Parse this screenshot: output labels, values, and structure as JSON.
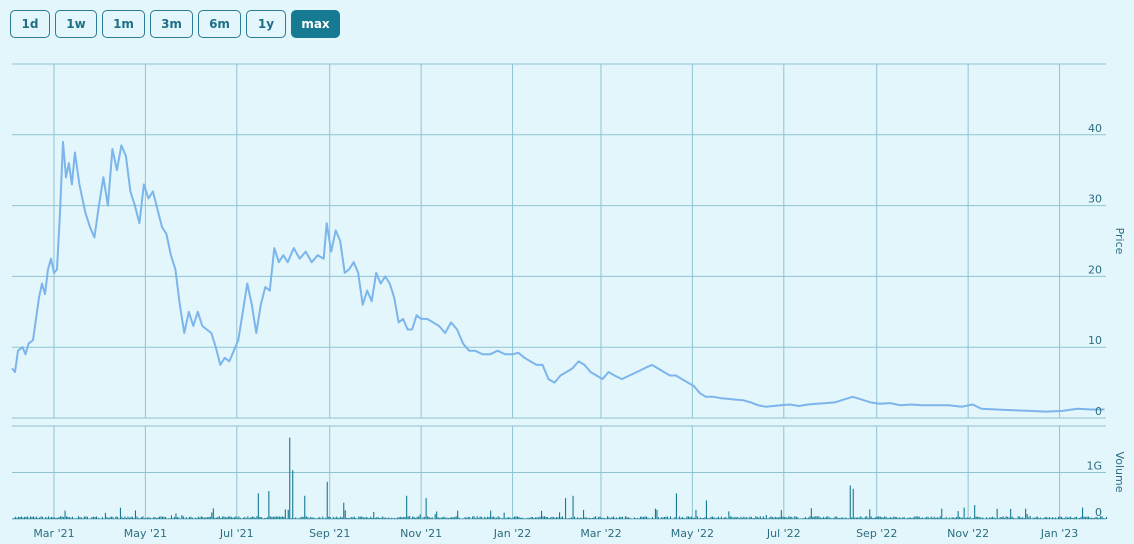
{
  "range_selector": {
    "buttons": [
      {
        "label": "1d",
        "active": false
      },
      {
        "label": "1w",
        "active": false
      },
      {
        "label": "1m",
        "active": false
      },
      {
        "label": "3m",
        "active": false
      },
      {
        "label": "6m",
        "active": false
      },
      {
        "label": "1y",
        "active": false
      },
      {
        "label": "max",
        "active": true
      }
    ]
  },
  "colors": {
    "background": "#e3f6fc",
    "grid": "#8fc3d2",
    "price_line": "#7cb5ec",
    "volume_bar": "#167a92",
    "text": "#2c6e80"
  },
  "chart_data": {
    "type": "line",
    "x_start": "2021-02-01",
    "x_end": "2023-02-01",
    "x_ticks": [
      {
        "label": "Mar '21",
        "date": "2021-03-01"
      },
      {
        "label": "May '21",
        "date": "2021-05-01"
      },
      {
        "label": "Jul '21",
        "date": "2021-07-01"
      },
      {
        "label": "Sep '21",
        "date": "2021-09-01"
      },
      {
        "label": "Nov '21",
        "date": "2021-11-01"
      },
      {
        "label": "Jan '22",
        "date": "2022-01-01"
      },
      {
        "label": "Mar '22",
        "date": "2022-03-01"
      },
      {
        "label": "May '22",
        "date": "2022-05-01"
      },
      {
        "label": "Jul '22",
        "date": "2022-07-01"
      },
      {
        "label": "Sep '22",
        "date": "2022-09-01"
      },
      {
        "label": "Nov '22",
        "date": "2022-11-01"
      },
      {
        "label": "Jan '23",
        "date": "2023-01-01"
      }
    ],
    "grid": true,
    "price": {
      "axis_title": "Price",
      "ylim": [
        0,
        50
      ],
      "y_ticks": [
        0,
        10,
        20,
        30,
        40
      ],
      "tick_labels": [
        "0",
        "10",
        "20",
        "30",
        "40"
      ],
      "points": [
        [
          "2021-02-01",
          7
        ],
        [
          "2021-02-03",
          6.5
        ],
        [
          "2021-02-05",
          9.5
        ],
        [
          "2021-02-08",
          10
        ],
        [
          "2021-02-10",
          9
        ],
        [
          "2021-02-12",
          10.5
        ],
        [
          "2021-02-15",
          11
        ],
        [
          "2021-02-17",
          14
        ],
        [
          "2021-02-19",
          17
        ],
        [
          "2021-02-21",
          19
        ],
        [
          "2021-02-23",
          17.5
        ],
        [
          "2021-02-25",
          21
        ],
        [
          "2021-02-27",
          22.5
        ],
        [
          "2021-03-01",
          20.5
        ],
        [
          "2021-03-03",
          21
        ],
        [
          "2021-03-05",
          29
        ],
        [
          "2021-03-07",
          39
        ],
        [
          "2021-03-09",
          34
        ],
        [
          "2021-03-11",
          36
        ],
        [
          "2021-03-13",
          33
        ],
        [
          "2021-03-15",
          37.5
        ],
        [
          "2021-03-18",
          33
        ],
        [
          "2021-03-22",
          29
        ],
        [
          "2021-03-25",
          27
        ],
        [
          "2021-03-28",
          25.5
        ],
        [
          "2021-03-31",
          30
        ],
        [
          "2021-04-03",
          34
        ],
        [
          "2021-04-06",
          30
        ],
        [
          "2021-04-09",
          38
        ],
        [
          "2021-04-12",
          35
        ],
        [
          "2021-04-15",
          38.5
        ],
        [
          "2021-04-18",
          37
        ],
        [
          "2021-04-21",
          32
        ],
        [
          "2021-04-24",
          30
        ],
        [
          "2021-04-27",
          27.5
        ],
        [
          "2021-04-30",
          33
        ],
        [
          "2021-05-03",
          31
        ],
        [
          "2021-05-06",
          32
        ],
        [
          "2021-05-09",
          29.5
        ],
        [
          "2021-05-12",
          27
        ],
        [
          "2021-05-15",
          26
        ],
        [
          "2021-05-18",
          23
        ],
        [
          "2021-05-21",
          21
        ],
        [
          "2021-05-24",
          16
        ],
        [
          "2021-05-27",
          12
        ],
        [
          "2021-05-30",
          15
        ],
        [
          "2021-06-02",
          13
        ],
        [
          "2021-06-05",
          15
        ],
        [
          "2021-06-08",
          13
        ],
        [
          "2021-06-11",
          12.5
        ],
        [
          "2021-06-14",
          12
        ],
        [
          "2021-06-17",
          10
        ],
        [
          "2021-06-20",
          7.5
        ],
        [
          "2021-06-23",
          8.5
        ],
        [
          "2021-06-26",
          8
        ],
        [
          "2021-06-29",
          9.5
        ],
        [
          "2021-07-02",
          11
        ],
        [
          "2021-07-05",
          15
        ],
        [
          "2021-07-08",
          19
        ],
        [
          "2021-07-11",
          16
        ],
        [
          "2021-07-14",
          12
        ],
        [
          "2021-07-17",
          16
        ],
        [
          "2021-07-20",
          18.5
        ],
        [
          "2021-07-23",
          18
        ],
        [
          "2021-07-26",
          24
        ],
        [
          "2021-07-29",
          22
        ],
        [
          "2021-08-01",
          23
        ],
        [
          "2021-08-04",
          22
        ],
        [
          "2021-08-08",
          24
        ],
        [
          "2021-08-12",
          22.5
        ],
        [
          "2021-08-16",
          23.5
        ],
        [
          "2021-08-20",
          22
        ],
        [
          "2021-08-24",
          23
        ],
        [
          "2021-08-28",
          22.5
        ],
        [
          "2021-08-30",
          27.5
        ],
        [
          "2021-09-02",
          23.5
        ],
        [
          "2021-09-05",
          26.5
        ],
        [
          "2021-09-08",
          25
        ],
        [
          "2021-09-11",
          20.5
        ],
        [
          "2021-09-14",
          21
        ],
        [
          "2021-09-17",
          22
        ],
        [
          "2021-09-20",
          20.5
        ],
        [
          "2021-09-23",
          16
        ],
        [
          "2021-09-26",
          18
        ],
        [
          "2021-09-29",
          16.5
        ],
        [
          "2021-10-02",
          20.5
        ],
        [
          "2021-10-05",
          19
        ],
        [
          "2021-10-08",
          20
        ],
        [
          "2021-10-11",
          19
        ],
        [
          "2021-10-14",
          17
        ],
        [
          "2021-10-17",
          13.5
        ],
        [
          "2021-10-20",
          14
        ],
        [
          "2021-10-23",
          12.5
        ],
        [
          "2021-10-26",
          12.5
        ],
        [
          "2021-10-29",
          14.5
        ],
        [
          "2021-11-01",
          14
        ],
        [
          "2021-11-05",
          14
        ],
        [
          "2021-11-09",
          13.5
        ],
        [
          "2021-11-13",
          13
        ],
        [
          "2021-11-17",
          12
        ],
        [
          "2021-11-21",
          13.5
        ],
        [
          "2021-11-25",
          12.5
        ],
        [
          "2021-11-29",
          10.5
        ],
        [
          "2021-12-03",
          9.5
        ],
        [
          "2021-12-07",
          9.5
        ],
        [
          "2021-12-12",
          9
        ],
        [
          "2021-12-17",
          9
        ],
        [
          "2021-12-22",
          9.5
        ],
        [
          "2021-12-27",
          9
        ],
        [
          "2022-01-01",
          9
        ],
        [
          "2022-01-05",
          9.2
        ],
        [
          "2022-01-09",
          8.5
        ],
        [
          "2022-01-13",
          8
        ],
        [
          "2022-01-17",
          7.5
        ],
        [
          "2022-01-21",
          7.5
        ],
        [
          "2022-01-25",
          5.5
        ],
        [
          "2022-01-29",
          5
        ],
        [
          "2022-02-02",
          6
        ],
        [
          "2022-02-06",
          6.5
        ],
        [
          "2022-02-10",
          7
        ],
        [
          "2022-02-14",
          8
        ],
        [
          "2022-02-18",
          7.5
        ],
        [
          "2022-02-22",
          6.5
        ],
        [
          "2022-02-26",
          6
        ],
        [
          "2022-03-02",
          5.5
        ],
        [
          "2022-03-06",
          6.5
        ],
        [
          "2022-03-10",
          6
        ],
        [
          "2022-03-15",
          5.5
        ],
        [
          "2022-03-20",
          6
        ],
        [
          "2022-03-25",
          6.5
        ],
        [
          "2022-03-30",
          7
        ],
        [
          "2022-04-04",
          7.5
        ],
        [
          "2022-04-08",
          7
        ],
        [
          "2022-04-12",
          6.5
        ],
        [
          "2022-04-16",
          6
        ],
        [
          "2022-04-20",
          6
        ],
        [
          "2022-04-24",
          5.5
        ],
        [
          "2022-04-28",
          5
        ],
        [
          "2022-05-02",
          4.5
        ],
        [
          "2022-05-06",
          3.5
        ],
        [
          "2022-05-10",
          3
        ],
        [
          "2022-05-15",
          3
        ],
        [
          "2022-05-20",
          2.8
        ],
        [
          "2022-05-25",
          2.7
        ],
        [
          "2022-05-30",
          2.6
        ],
        [
          "2022-06-04",
          2.5
        ],
        [
          "2022-06-09",
          2.2
        ],
        [
          "2022-06-14",
          1.8
        ],
        [
          "2022-06-19",
          1.6
        ],
        [
          "2022-06-24",
          1.7
        ],
        [
          "2022-06-29",
          1.8
        ],
        [
          "2022-07-05",
          1.9
        ],
        [
          "2022-07-11",
          1.7
        ],
        [
          "2022-07-17",
          1.9
        ],
        [
          "2022-07-23",
          2.0
        ],
        [
          "2022-07-29",
          2.1
        ],
        [
          "2022-08-04",
          2.2
        ],
        [
          "2022-08-10",
          2.6
        ],
        [
          "2022-08-16",
          3
        ],
        [
          "2022-08-22",
          2.6
        ],
        [
          "2022-08-28",
          2.2
        ],
        [
          "2022-09-03",
          2.0
        ],
        [
          "2022-09-10",
          2.1
        ],
        [
          "2022-09-17",
          1.8
        ],
        [
          "2022-09-24",
          1.9
        ],
        [
          "2022-10-01",
          1.8
        ],
        [
          "2022-10-10",
          1.8
        ],
        [
          "2022-10-19",
          1.8
        ],
        [
          "2022-10-28",
          1.6
        ],
        [
          "2022-11-04",
          1.9
        ],
        [
          "2022-11-10",
          1.3
        ],
        [
          "2022-11-20",
          1.2
        ],
        [
          "2022-12-01",
          1.1
        ],
        [
          "2022-12-12",
          1.0
        ],
        [
          "2022-12-23",
          0.9
        ],
        [
          "2023-01-03",
          1.0
        ],
        [
          "2023-01-13",
          1.3
        ],
        [
          "2023-01-22",
          1.2
        ],
        [
          "2023-01-31",
          1.2
        ]
      ]
    },
    "volume": {
      "axis_title": "Volume",
      "ylim": [
        0,
        2
      ],
      "y_ticks": [
        0,
        1
      ],
      "tick_labels": [
        "0",
        "1G"
      ]
    }
  }
}
